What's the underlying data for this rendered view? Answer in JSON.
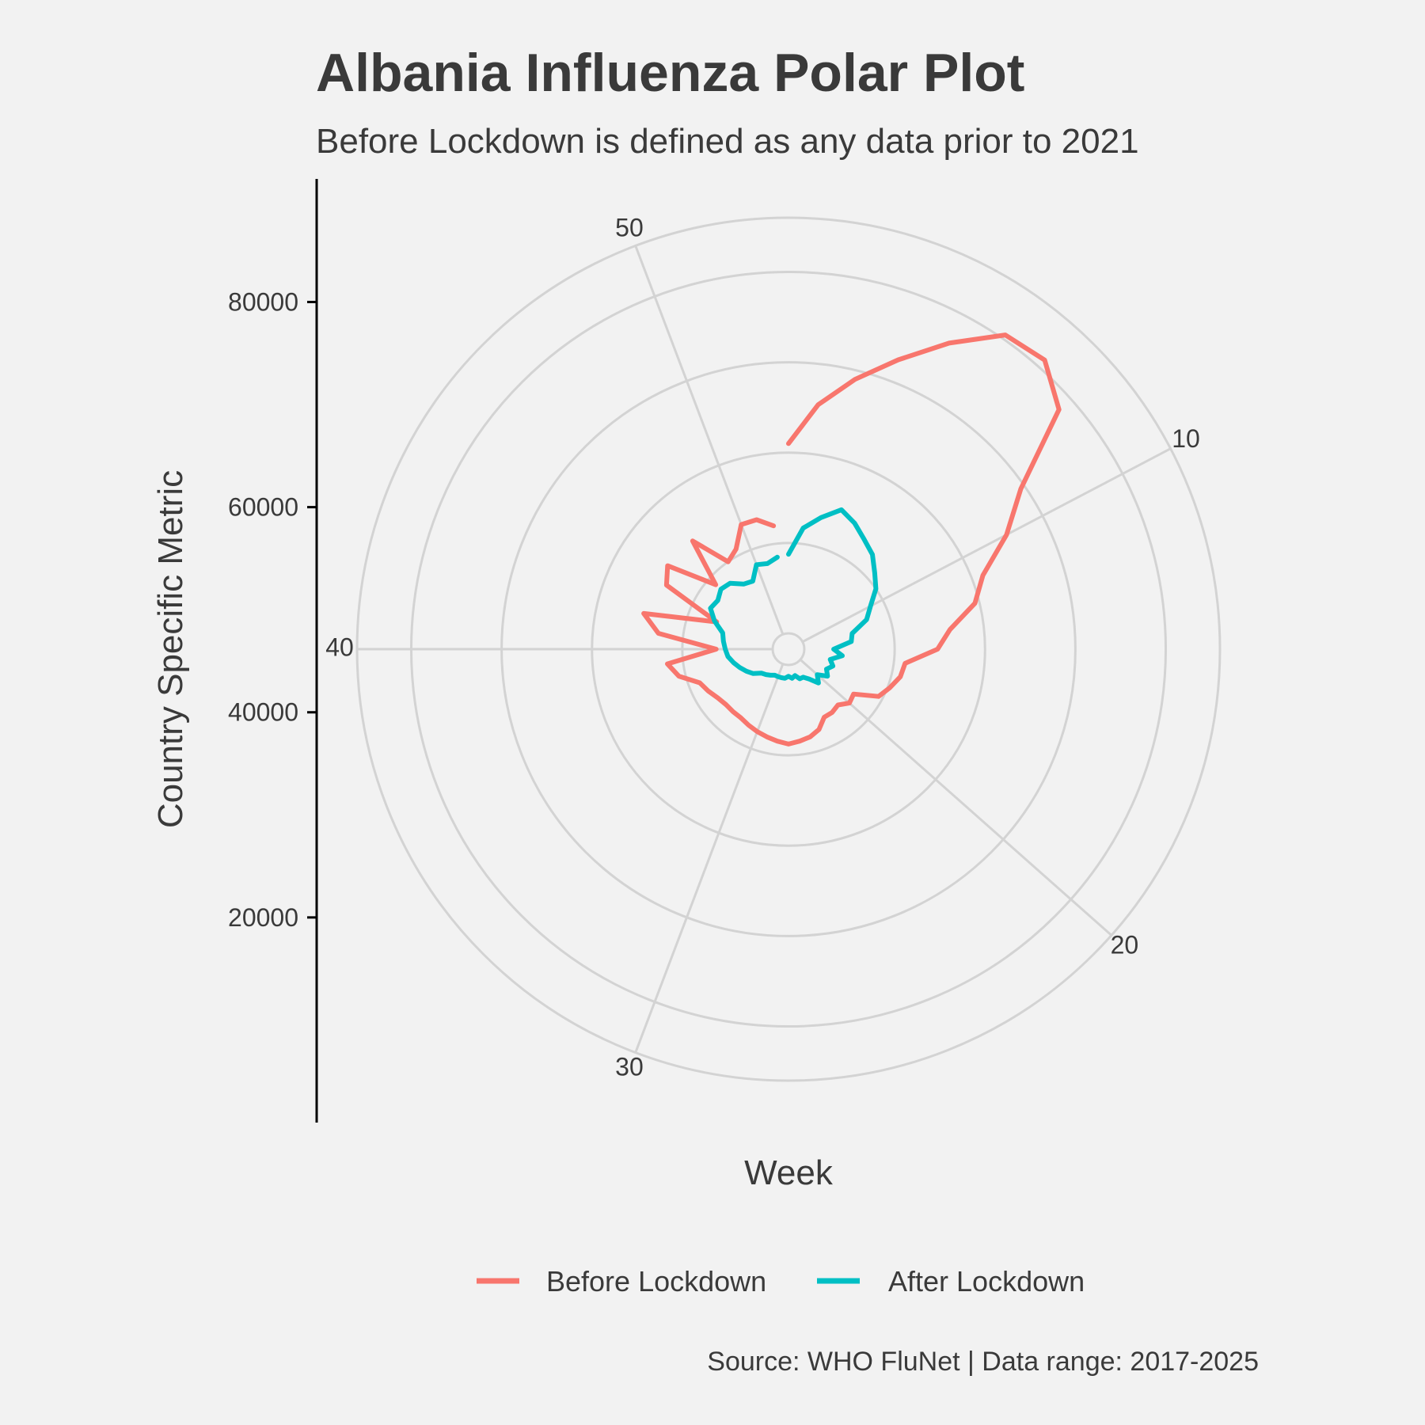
{
  "chart_data": {
    "type": "line",
    "coordinate_system": "polar",
    "title": "Albania Influenza Polar Plot",
    "subtitle": "Before Lockdown is defined as any data prior to 2021",
    "xlabel": "Week",
    "ylabel": "Country Specific Metric",
    "caption": "Source: WHO FluNet | Data range: 2017-2025",
    "x_ticks": [
      10,
      20,
      30,
      40,
      50
    ],
    "y_ticks": [
      20000,
      40000,
      60000,
      80000
    ],
    "xlim": [
      1,
      53
    ],
    "ylim": [
      0,
      92000
    ],
    "grid": true,
    "legend_position": "bottom",
    "colors": {
      "Before Lockdown": "#F8766D",
      "After Lockdown": "#00BFC4"
    },
    "series": [
      {
        "name": "Before Lockdown",
        "x": [
          1,
          2,
          3,
          4,
          5,
          6,
          7,
          8,
          9,
          10,
          11,
          12,
          13,
          14,
          15,
          16,
          17,
          18,
          19,
          20,
          21,
          22,
          23,
          24,
          25,
          26,
          27,
          28,
          29,
          30,
          31,
          32,
          33,
          34,
          35,
          36,
          37,
          38,
          39,
          40,
          41,
          42,
          43,
          44,
          45,
          46,
          47,
          48,
          49,
          50,
          51,
          52
        ],
        "y": [
          42000,
          51000,
          58000,
          65000,
          73000,
          81000,
          82000,
          76500,
          59000,
          51000,
          42500,
          39000,
          32500,
          29500,
          22500,
          22000,
          20500,
          19000,
          14000,
          14500,
          13000,
          13500,
          13500,
          15500,
          16500,
          17000,
          17500,
          17000,
          16500,
          16000,
          15500,
          15000,
          15000,
          15000,
          15500,
          16500,
          17500,
          21500,
          23500,
          12500,
          25500,
          29500,
          13500,
          27000,
          29000,
          18000,
          28500,
          20000,
          21500,
          26000,
          26000,
          24000
        ]
      },
      {
        "name": "After Lockdown",
        "x": [
          1,
          2,
          3,
          4,
          5,
          6,
          7,
          8,
          9,
          10,
          11,
          12,
          13,
          14,
          15,
          16,
          17,
          18,
          19,
          20,
          21,
          22,
          23,
          24,
          25,
          26,
          27,
          28,
          29,
          30,
          31,
          32,
          33,
          34,
          35,
          36,
          37,
          38,
          39,
          40,
          41,
          42,
          43,
          44,
          45,
          46,
          47,
          48,
          49,
          50,
          51,
          52
        ],
        "y": [
          17500,
          23500,
          26500,
          29500,
          28000,
          26000,
          24500,
          22000,
          20000,
          17000,
          15000,
          11000,
          10500,
          6500,
          8500,
          6000,
          7000,
          6000,
          7000,
          5000,
          6500,
          4500,
          3500,
          3500,
          2500,
          3000,
          2500,
          3000,
          3000,
          3000,
          3000,
          3500,
          4000,
          4500,
          6000,
          7000,
          8000,
          9000,
          10000,
          10500,
          11000,
          11500,
          14000,
          16000,
          15500,
          16500,
          16000,
          14000,
          13500,
          16500,
          16000,
          17000
        ]
      }
    ]
  }
}
